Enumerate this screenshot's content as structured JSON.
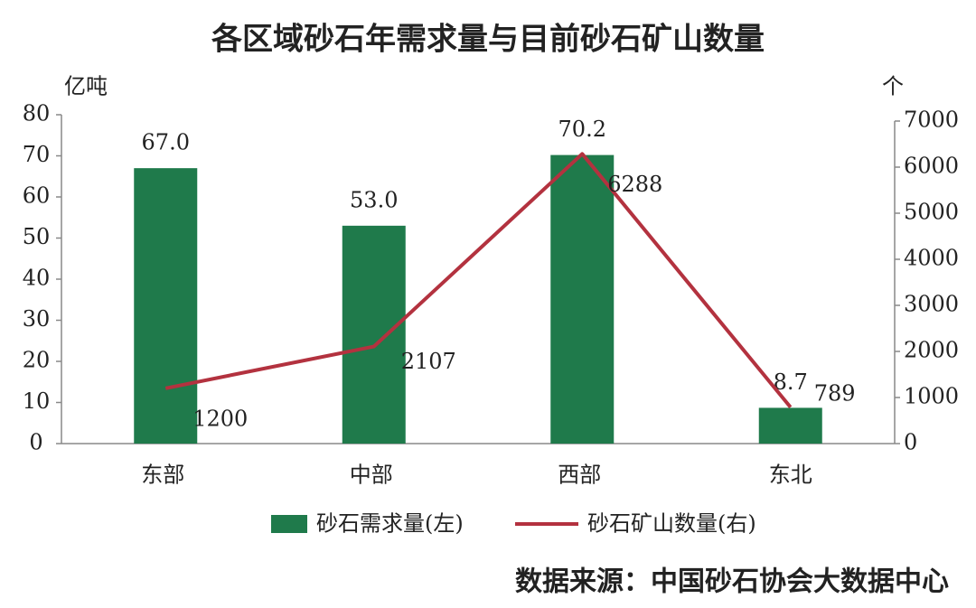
{
  "chart_data": {
    "type": "bar",
    "title": "各区域砂石年需求量与目前砂石矿山数量",
    "y_label": "亿吨",
    "y2_label": "个",
    "categories": [
      "东部",
      "中部",
      "西部",
      "东北"
    ],
    "series": [
      {
        "name": "砂石需求量(左)",
        "color": "#1f7a4b",
        "values": [
          67.0,
          53.0,
          70.2,
          8.7
        ],
        "value_labels": [
          "67.0",
          "53.0",
          "70.2",
          "8.7"
        ]
      },
      {
        "name": "砂石矿山数量(右)",
        "type": "line",
        "axis": "y2",
        "color": "#b3323f",
        "values": [
          1200,
          2107,
          6288,
          789
        ]
      }
    ],
    "ylim": [
      0,
      80
    ],
    "yticks": [
      0,
      10,
      20,
      30,
      40,
      50,
      60,
      70,
      80
    ],
    "y2lim": [
      0,
      7000
    ],
    "y2ticks": [
      0,
      1000,
      2000,
      3000,
      4000,
      5000,
      6000,
      7000
    ],
    "grid": false,
    "source": "数据来源：中国砂石协会大数据中心"
  }
}
